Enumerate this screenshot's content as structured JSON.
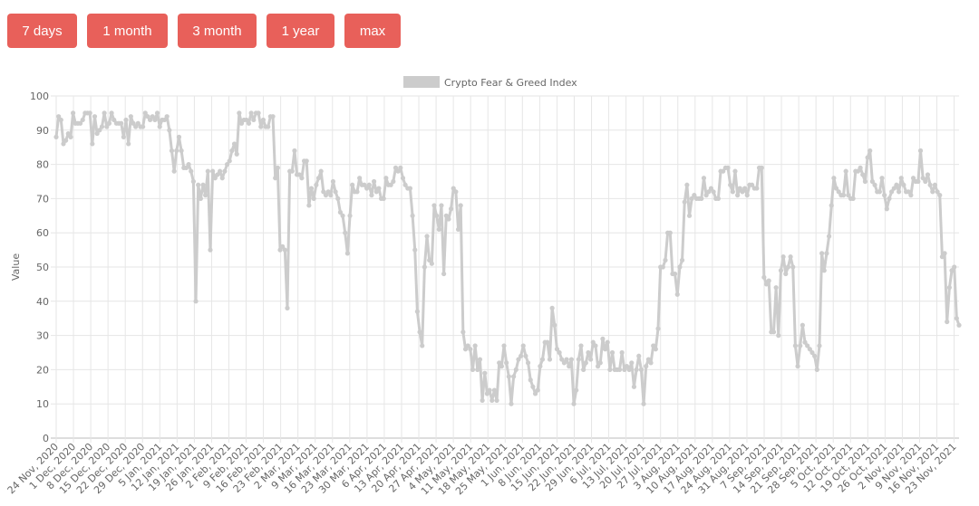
{
  "range_buttons": [
    {
      "label": "7 days"
    },
    {
      "label": "1 month"
    },
    {
      "label": "3 month"
    },
    {
      "label": "1 year"
    },
    {
      "label": "max"
    }
  ],
  "colors": {
    "button_bg": "#e8605a",
    "line": "#cccccc",
    "grid": "#e6e6e6"
  },
  "chart_data": {
    "type": "line",
    "legend": "Crypto Fear & Greed Index",
    "legend_position": "top",
    "ylabel": "Value",
    "xlabel": "",
    "ylim": [
      0,
      100
    ],
    "y_ticks": [
      0,
      10,
      20,
      30,
      40,
      50,
      60,
      70,
      80,
      90,
      100
    ],
    "grid": true,
    "x_start": "24 Nov, 2020",
    "x_end": "25 Nov, 2021",
    "x_ticks": [
      "24 Nov, 2020",
      "1 Dec, 2020",
      "8 Dec, 2020",
      "15 Dec, 2020",
      "22 Dec, 2020",
      "29 Dec, 2020",
      "5 Jan, 2021",
      "12 Jan, 2021",
      "19 Jan, 2021",
      "26 Jan, 2021",
      "2 Feb, 2021",
      "9 Feb, 2021",
      "16 Feb, 2021",
      "23 Feb, 2021",
      "2 Mar, 2021",
      "9 Mar, 2021",
      "16 Mar, 2021",
      "23 Mar, 2021",
      "30 Mar, 2021",
      "6 Apr, 2021",
      "13 Apr, 2021",
      "20 Apr, 2021",
      "27 Apr, 2021",
      "4 May, 2021",
      "11 May, 2021",
      "18 May, 2021",
      "25 May, 2021",
      "1 Jun, 2021",
      "8 Jun, 2021",
      "15 Jun, 2021",
      "22 Jun, 2021",
      "29 Jun, 2021",
      "6 Jul, 2021",
      "13 Jul, 2021",
      "20 Jul, 2021",
      "27 Jul, 2021",
      "3 Aug, 2021",
      "10 Aug, 2021",
      "17 Aug, 2021",
      "24 Aug, 2021",
      "31 Aug, 2021",
      "7 Sep, 2021",
      "14 Sep, 2021",
      "21 Sep, 2021",
      "28 Sep, 2021",
      "5 Oct, 2021",
      "12 Oct, 2021",
      "19 Oct, 2021",
      "26 Oct, 2021",
      "2 Nov, 2021",
      "9 Nov, 2021",
      "16 Nov, 2021",
      "23 Nov, 2021"
    ],
    "values": [
      88,
      94,
      93,
      86,
      87,
      89,
      88,
      95,
      92,
      92,
      92,
      93,
      95,
      95,
      95,
      86,
      94,
      89,
      90,
      91,
      95,
      91,
      92,
      95,
      93,
      92,
      92,
      92,
      88,
      93,
      86,
      94,
      92,
      91,
      92,
      91,
      91,
      95,
      94,
      93,
      94,
      93,
      95,
      91,
      93,
      93,
      94,
      90,
      84,
      78,
      84,
      88,
      84,
      79,
      79,
      80,
      78,
      75,
      40,
      74,
      70,
      74,
      71,
      78,
      55,
      78,
      76,
      77,
      78,
      76,
      78,
      80,
      81,
      84,
      86,
      83,
      95,
      92,
      93,
      93,
      92,
      95,
      93,
      95,
      95,
      91,
      93,
      91,
      91,
      94,
      94,
      76,
      79,
      55,
      56,
      55,
      38,
      78,
      78,
      84,
      77,
      77,
      76,
      81,
      81,
      68,
      73,
      70,
      74,
      76,
      78,
      72,
      71,
      72,
      71,
      75,
      72,
      70,
      66,
      65,
      60,
      54,
      65,
      74,
      72,
      72,
      76,
      74,
      74,
      73,
      74,
      71,
      75,
      72,
      73,
      70,
      70,
      76,
      74,
      74,
      75,
      79,
      78,
      79,
      76,
      74,
      73,
      73,
      65,
      55,
      37,
      31,
      27,
      50,
      59,
      52,
      51,
      68,
      65,
      61,
      68,
      48,
      65,
      64,
      67,
      73,
      72,
      61,
      68,
      31,
      26,
      27,
      26,
      20,
      27,
      20,
      23,
      11,
      19,
      13,
      14,
      11,
      14,
      11,
      22,
      21,
      27,
      22,
      18,
      10,
      18,
      20,
      23,
      24,
      27,
      24,
      22,
      17,
      15,
      13,
      14,
      21,
      23,
      28,
      28,
      23,
      38,
      33,
      26,
      25,
      23,
      22,
      23,
      21,
      23,
      10,
      14,
      23,
      27,
      20,
      22,
      25,
      23,
      28,
      27,
      21,
      22,
      29,
      26,
      28,
      20,
      25,
      20,
      20,
      20,
      25,
      20,
      21,
      20,
      22,
      15,
      20,
      24,
      20,
      10,
      21,
      23,
      22,
      27,
      26,
      32,
      50,
      50,
      52,
      60,
      60,
      48,
      48,
      42,
      50,
      52,
      69,
      74,
      65,
      70,
      71,
      70,
      70,
      70,
      76,
      71,
      72,
      73,
      72,
      70,
      70,
      78,
      78,
      79,
      79,
      74,
      72,
      78,
      71,
      73,
      72,
      73,
      71,
      74,
      74,
      73,
      73,
      79,
      79,
      47,
      45,
      46,
      31,
      31,
      44,
      30,
      49,
      53,
      48,
      50,
      53,
      50,
      27,
      21,
      27,
      33,
      28,
      27,
      26,
      25,
      24,
      20,
      27,
      54,
      49,
      54,
      59,
      68,
      76,
      73,
      72,
      71,
      71,
      78,
      71,
      70,
      70,
      78,
      78,
      79,
      77,
      75,
      82,
      84,
      75,
      74,
      72,
      72,
      76,
      71,
      67,
      70,
      72,
      73,
      74,
      72,
      76,
      74,
      72,
      72,
      71,
      76,
      75,
      75,
      84,
      76,
      75,
      77,
      74,
      72,
      74,
      72,
      71,
      53,
      54,
      34,
      44,
      49,
      50,
      35,
      33
    ]
  }
}
